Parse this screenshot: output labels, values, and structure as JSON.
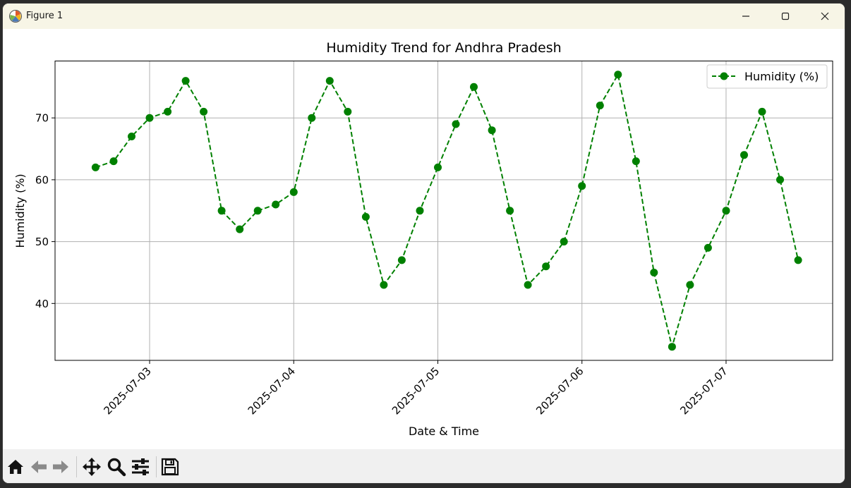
{
  "window": {
    "title": "Figure 1"
  },
  "toolbar": {
    "items": [
      "home-icon",
      "back-arrow-icon",
      "forward-arrow-icon",
      "pan-icon",
      "zoom-icon",
      "configure-subplots-icon",
      "save-icon"
    ]
  },
  "chart_data": {
    "type": "line",
    "title": "Humidity Trend for Andhra Pradesh",
    "xlabel": "Date & Time",
    "ylabel": "Humidity (%)",
    "ylim": [
      30.8,
      79.2
    ],
    "xlim": [
      "2025-07-02 08:15",
      "2025-07-07 17:45"
    ],
    "x_ticks": [
      "2025-07-03",
      "2025-07-04",
      "2025-07-05",
      "2025-07-06",
      "2025-07-07"
    ],
    "y_ticks": [
      40,
      50,
      60,
      70
    ],
    "grid": true,
    "legend": "top-right",
    "series": [
      {
        "name": "Humidity (%)",
        "color": "#008000",
        "line_style": "dashed",
        "marker": "circle",
        "x": [
          "2025-07-02 15:00",
          "2025-07-02 18:00",
          "2025-07-02 21:00",
          "2025-07-03 00:00",
          "2025-07-03 03:00",
          "2025-07-03 06:00",
          "2025-07-03 09:00",
          "2025-07-03 12:00",
          "2025-07-03 15:00",
          "2025-07-03 18:00",
          "2025-07-03 21:00",
          "2025-07-04 00:00",
          "2025-07-04 03:00",
          "2025-07-04 06:00",
          "2025-07-04 09:00",
          "2025-07-04 12:00",
          "2025-07-04 15:00",
          "2025-07-04 18:00",
          "2025-07-04 21:00",
          "2025-07-05 00:00",
          "2025-07-05 03:00",
          "2025-07-05 06:00",
          "2025-07-05 09:00",
          "2025-07-05 12:00",
          "2025-07-05 15:00",
          "2025-07-05 18:00",
          "2025-07-05 21:00",
          "2025-07-06 00:00",
          "2025-07-06 03:00",
          "2025-07-06 06:00",
          "2025-07-06 09:00",
          "2025-07-06 12:00",
          "2025-07-06 15:00",
          "2025-07-06 18:00",
          "2025-07-06 21:00",
          "2025-07-07 00:00",
          "2025-07-07 03:00",
          "2025-07-07 06:00",
          "2025-07-07 09:00",
          "2025-07-07 12:00"
        ],
        "values": [
          62,
          63,
          67,
          70,
          71,
          76,
          71,
          55,
          52,
          55,
          56,
          58,
          70,
          76,
          71,
          54,
          43,
          47,
          55,
          62,
          69,
          75,
          68,
          55,
          43,
          46,
          50,
          59,
          72,
          77,
          63,
          45,
          33,
          43,
          49,
          55,
          64,
          71,
          60,
          47
        ]
      }
    ]
  }
}
